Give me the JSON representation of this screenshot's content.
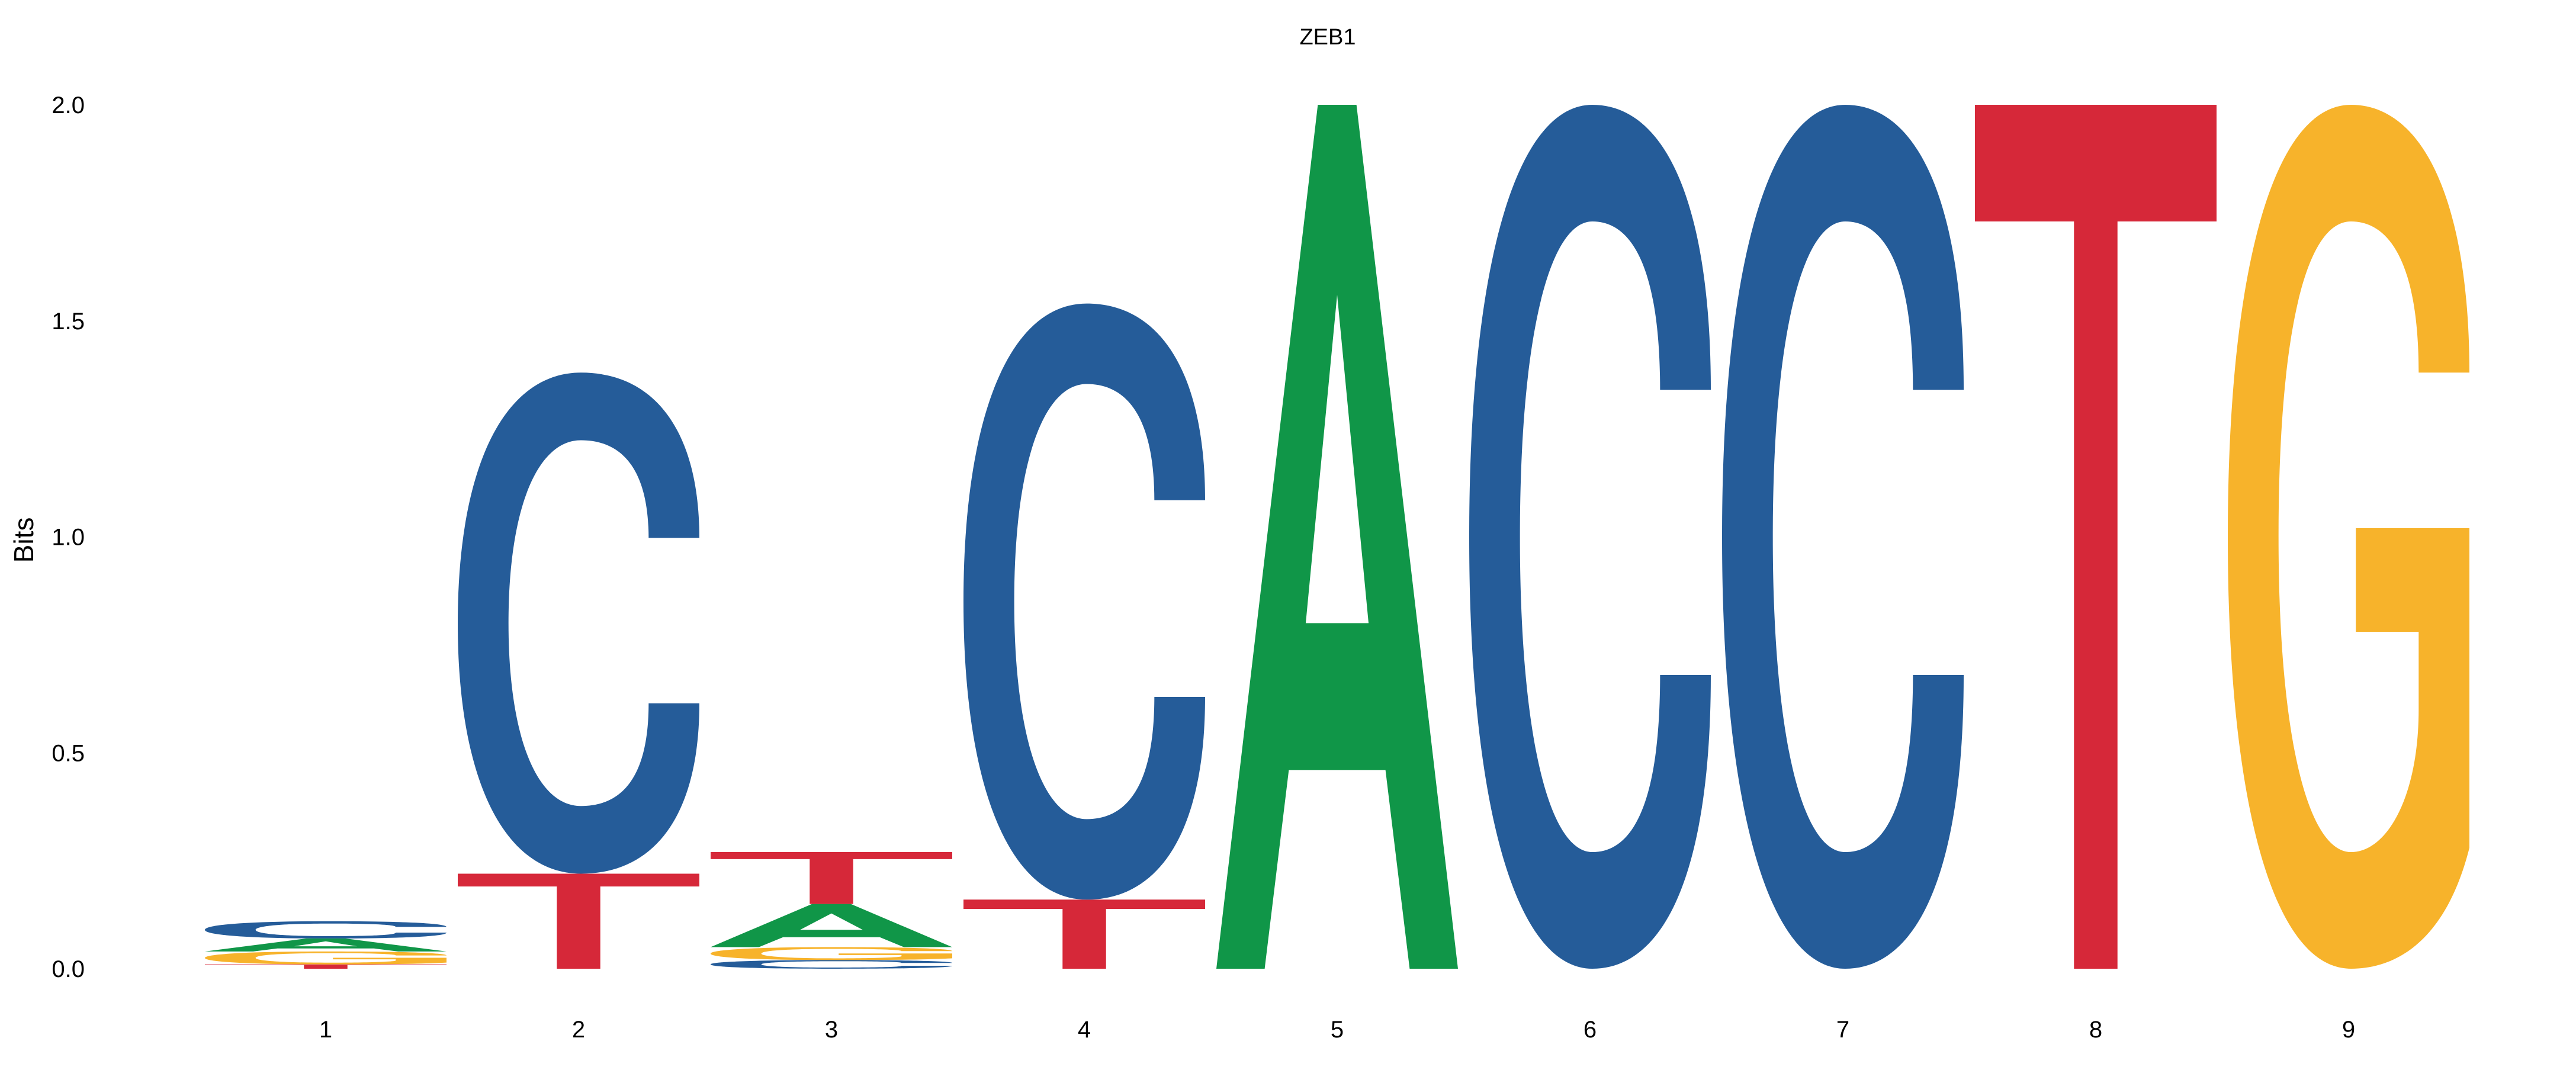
{
  "chart_data": {
    "type": "sequence-logo",
    "title": "ZEB1",
    "ylabel": "Bits",
    "xlabel": "",
    "ylim": [
      0,
      2.0
    ],
    "yticks": [
      "0.0",
      "0.5",
      "1.0",
      "1.5",
      "2.0"
    ],
    "ytick_values": [
      0,
      0.5,
      1.0,
      1.5,
      2.0
    ],
    "grid": false,
    "colors": {
      "A": "#109648",
      "C": "#255c99",
      "G": "#f7b32b",
      "T": "#d62839"
    },
    "positions": [
      {
        "label": "1",
        "letters": [
          {
            "base": "T",
            "height": 0.01
          },
          {
            "base": "G",
            "height": 0.03
          },
          {
            "base": "A",
            "height": 0.03
          },
          {
            "base": "C",
            "height": 0.04
          }
        ]
      },
      {
        "label": "2",
        "letters": [
          {
            "base": "T",
            "height": 0.22
          },
          {
            "base": "C",
            "height": 1.16
          }
        ]
      },
      {
        "label": "3",
        "letters": [
          {
            "base": "C",
            "height": 0.02
          },
          {
            "base": "G",
            "height": 0.03
          },
          {
            "base": "A",
            "height": 0.1
          },
          {
            "base": "T",
            "height": 0.12
          }
        ]
      },
      {
        "label": "4",
        "letters": [
          {
            "base": "T",
            "height": 0.16
          },
          {
            "base": "C",
            "height": 1.38
          }
        ]
      },
      {
        "label": "5",
        "letters": [
          {
            "base": "A",
            "height": 2.0
          }
        ]
      },
      {
        "label": "6",
        "letters": [
          {
            "base": "C",
            "height": 2.0
          }
        ]
      },
      {
        "label": "7",
        "letters": [
          {
            "base": "C",
            "height": 2.0
          }
        ]
      },
      {
        "label": "8",
        "letters": [
          {
            "base": "T",
            "height": 2.0
          }
        ]
      },
      {
        "label": "9",
        "letters": [
          {
            "base": "G",
            "height": 2.0
          }
        ]
      }
    ]
  }
}
